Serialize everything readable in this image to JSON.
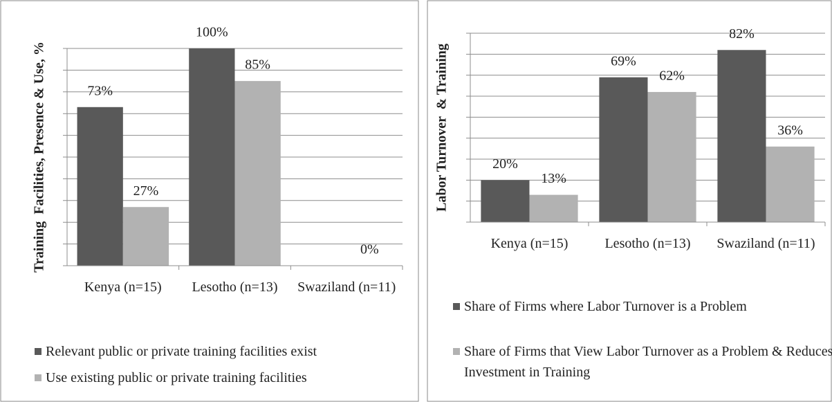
{
  "chart_data": [
    {
      "type": "bar",
      "y_label": "Training  Facilities, Presence & Use, %",
      "categories": [
        "Kenya (n=15)",
        "Lesotho (n=13)",
        "Swaziland (n=11)"
      ],
      "series": [
        {
          "name": "Relevant public or private training facilities exist",
          "color": "#595959",
          "values": [
            73,
            100,
            null
          ],
          "value_labels": [
            "73%",
            "100%",
            null
          ]
        },
        {
          "name": "Use existing public or private training facilities",
          "color": "#b2b2b2",
          "values": [
            27,
            85,
            0
          ],
          "value_labels": [
            "27%",
            "85%",
            "0%"
          ]
        }
      ],
      "ylim": [
        0,
        100
      ],
      "yticks": [
        0,
        10,
        20,
        30,
        40,
        50,
        60,
        70,
        80,
        90,
        100
      ],
      "grid": true,
      "legend": "bottom"
    },
    {
      "type": "bar",
      "y_label": "Labor Turnover  & Training",
      "categories": [
        "Kenya (n=15)",
        "Lesotho (n=13)",
        "Swaziland (n=11)"
      ],
      "series": [
        {
          "name": "Share of Firms where Labor Turnover is a Problem",
          "color": "#595959",
          "values": [
            20,
            69,
            82
          ],
          "value_labels": [
            "20%",
            "69%",
            "82%"
          ]
        },
        {
          "name": "Share of Firms that View Labor Turnover as a Problem & Reduces Investment in Training",
          "color": "#b2b2b2",
          "values": [
            13,
            62,
            36
          ],
          "value_labels": [
            "13%",
            "62%",
            "36%"
          ]
        }
      ],
      "ylim": [
        0,
        90
      ],
      "yticks": [
        0,
        10,
        20,
        30,
        40,
        50,
        60,
        70,
        80,
        90
      ],
      "grid": true,
      "legend": "bottom"
    }
  ]
}
